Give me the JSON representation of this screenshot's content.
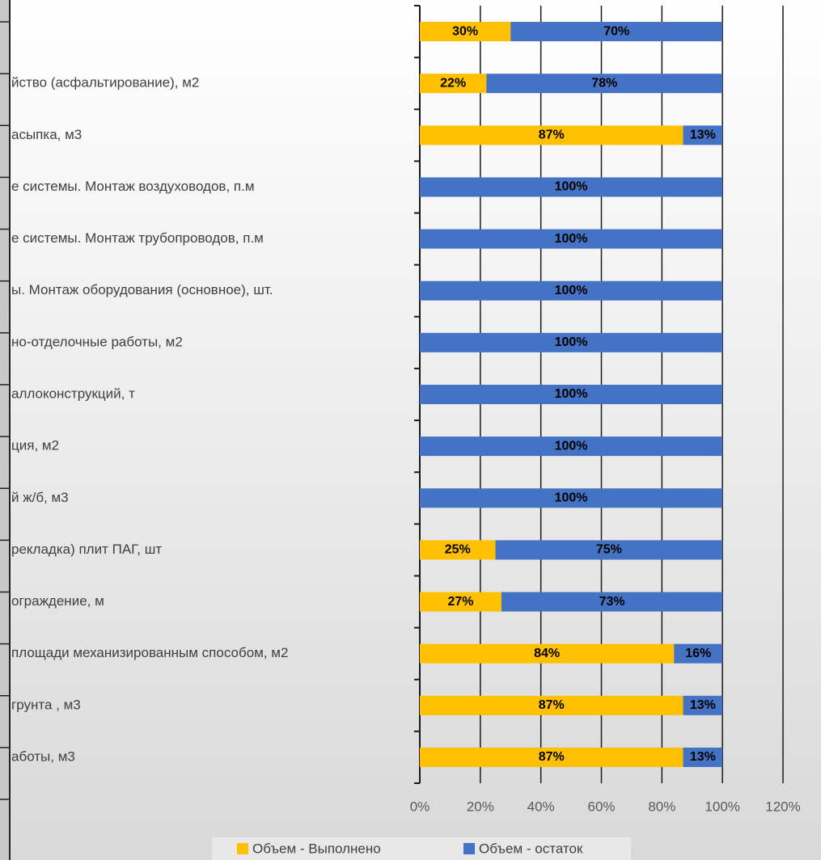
{
  "chart_data": {
    "type": "stacked-barh",
    "categories": [
      null,
      "йство (асфальтирование), м2",
      "асыпка, м3",
      "е системы. Монтаж воздуховодов, п.м",
      "е системы. Монтаж трубопроводов, п.м",
      "ы. Монтаж оборудования (основное), шт.",
      "но-отделочные работы, м2",
      "аллоконструкций, т",
      "ция, м2",
      "й ж/б, м3",
      "рекладка) плит ПАГ, шт",
      "ограждение, м",
      "площади механизированным способом, м2",
      "грунта , м3",
      "аботы, м3"
    ],
    "series": [
      {
        "name": "Объем - Выполнено",
        "color": "#ffc000",
        "values": [
          30,
          22,
          87,
          0,
          0,
          0,
          0,
          0,
          0,
          0,
          25,
          27,
          84,
          87,
          87
        ],
        "value_labels": [
          "30%",
          "22%",
          "87%",
          null,
          null,
          null,
          null,
          null,
          null,
          null,
          "25%",
          "27%",
          "84%",
          "87%",
          "87%"
        ]
      },
      {
        "name": "Объем - остаток",
        "color": "#4472c4",
        "values": [
          70,
          78,
          13,
          100,
          100,
          100,
          100,
          100,
          100,
          100,
          75,
          73,
          16,
          13,
          13
        ],
        "value_labels": [
          "70%",
          "78%",
          "13%",
          "100%",
          "100%",
          "100%",
          "100%",
          "100%",
          "100%",
          "100%",
          "75%",
          "73%",
          "16%",
          "13%",
          "13%"
        ]
      }
    ],
    "xlim": [
      0,
      120
    ],
    "xticks": [
      {
        "value": 0,
        "label": "0%"
      },
      {
        "value": 20,
        "label": "20%"
      },
      {
        "value": 40,
        "label": "40%"
      },
      {
        "value": 60,
        "label": "60%"
      },
      {
        "value": 80,
        "label": "80%"
      },
      {
        "value": 100,
        "label": "100%"
      },
      {
        "value": 120,
        "label": "120%"
      }
    ],
    "grid": true
  }
}
